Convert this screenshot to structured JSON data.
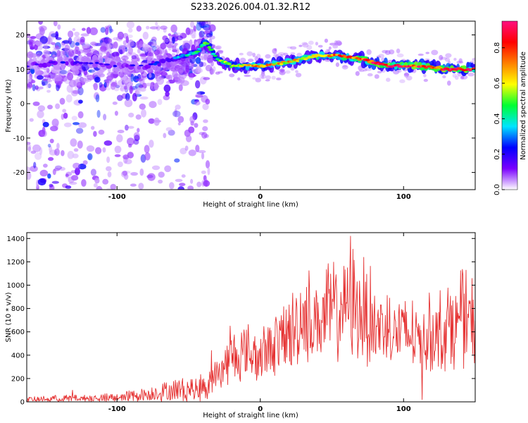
{
  "title": "S233.2026.004.01.32.R12",
  "colors": {
    "snr_line": "#e53030",
    "frame": "#000000",
    "background": "#ffffff"
  },
  "chart_data": [
    {
      "id": "spectrogram",
      "type": "heatmap",
      "title": "S233.2026.004.01.32.R12",
      "xlabel": "Height of straight line (km)",
      "ylabel": "Frequency (Hz)",
      "xlim": [
        -163,
        150
      ],
      "ylim": [
        -25,
        24
      ],
      "xticks": [
        -100,
        0,
        100
      ],
      "yticks": [
        20,
        10,
        0,
        -10,
        -20
      ],
      "colorbar": {
        "label": "Normalized spectral amplitude",
        "range": [
          0,
          0.95
        ],
        "ticks": [
          "0.0",
          "0.2",
          "0.4",
          "0.6",
          "0.8"
        ],
        "colors": [
          "#ffffff",
          "#7a00ff",
          "#0000ff",
          "#00e5ff",
          "#00ff33",
          "#ffff00",
          "#ff8000",
          "#ff0000",
          "#ff1080"
        ]
      },
      "ridge": {
        "x": [
          -163,
          -140,
          -120,
          -100,
          -80,
          -60,
          -45,
          -38,
          -30,
          -20,
          -10,
          0,
          20,
          40,
          55,
          70,
          90,
          110,
          130,
          150
        ],
        "freq": [
          11,
          12,
          12,
          11,
          11,
          13,
          15,
          18,
          13,
          11,
          11,
          11,
          12,
          14,
          14,
          13,
          11,
          11,
          10,
          10
        ],
        "amplitude": [
          0.2,
          0.2,
          0.2,
          0.2,
          0.2,
          0.3,
          0.45,
          0.5,
          0.5,
          0.55,
          0.6,
          0.72,
          0.65,
          0.7,
          0.75,
          0.8,
          0.9,
          0.88,
          0.9,
          0.85
        ]
      }
    },
    {
      "id": "snr",
      "type": "line",
      "title": "",
      "xlabel": "Height of straight line (km)",
      "ylabel": "SNR (10 * v/v)",
      "xlim": [
        -163,
        150
      ],
      "ylim": [
        0,
        1450
      ],
      "xticks": [
        -100,
        0,
        100
      ],
      "yticks": [
        0,
        200,
        400,
        600,
        800,
        1000,
        1200,
        1400
      ],
      "series": [
        {
          "name": "SNR",
          "envelope_x": [
            -163,
            -140,
            -120,
            -100,
            -80,
            -60,
            -45,
            -35,
            -30,
            -25,
            -20,
            -10,
            0,
            10,
            20,
            30,
            40,
            50,
            60,
            70,
            80,
            90,
            100,
            110,
            120,
            130,
            140,
            150
          ],
          "envelope_max": [
            40,
            60,
            60,
            80,
            120,
            200,
            220,
            300,
            380,
            500,
            620,
            700,
            600,
            850,
            900,
            1200,
            1150,
            1250,
            1420,
            1300,
            1100,
            1000,
            950,
            900,
            950,
            1050,
            1150,
            1100
          ],
          "peaks": [
            [
              -131,
              100
            ],
            [
              -34,
              440
            ],
            [
              -21,
              650
            ],
            [
              63,
              1420
            ],
            [
              -4,
              560
            ],
            [
              113,
              20
            ]
          ]
        }
      ]
    }
  ]
}
